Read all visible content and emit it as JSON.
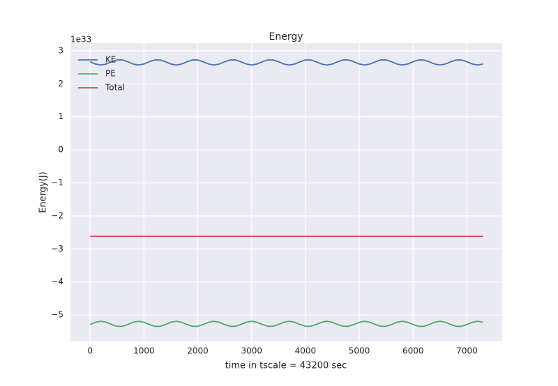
{
  "chart_data": {
    "type": "line",
    "title": "Energy",
    "xlabel": "time in tscale = 43200 sec",
    "ylabel": "Energy(J)",
    "y_offset_text": "1e33",
    "x": [
      0,
      100,
      200,
      300,
      400,
      500,
      600,
      700,
      800,
      900,
      1000,
      1100,
      1200,
      1300,
      1400,
      1500,
      1600,
      1700,
      1800,
      1900,
      2000,
      2100,
      2200,
      2300,
      2400,
      2500,
      2600,
      2700,
      2800,
      2900,
      3000,
      3100,
      3200,
      3300,
      3400,
      3500,
      3600,
      3700,
      3800,
      3900,
      4000,
      4100,
      4200,
      4300,
      4400,
      4500,
      4600,
      4700,
      4800,
      4900,
      5000,
      5100,
      5200,
      5300,
      5400,
      5500,
      5600,
      5700,
      5800,
      5900,
      6000,
      6100,
      6200,
      6300,
      6400,
      6500,
      6600,
      6700,
      6800,
      6900,
      7000,
      7100,
      7200,
      7300
    ],
    "series": [
      {
        "name": "KE",
        "color": "#4c72b0",
        "values": [
          2.668,
          2.6,
          2.57,
          2.6,
          2.668,
          2.722,
          2.722,
          2.668,
          2.6,
          2.57,
          2.6,
          2.668,
          2.722,
          2.722,
          2.668,
          2.6,
          2.57,
          2.6,
          2.668,
          2.722,
          2.722,
          2.668,
          2.6,
          2.57,
          2.6,
          2.668,
          2.722,
          2.722,
          2.668,
          2.6,
          2.57,
          2.6,
          2.668,
          2.722,
          2.722,
          2.668,
          2.6,
          2.57,
          2.6,
          2.668,
          2.722,
          2.722,
          2.668,
          2.6,
          2.57,
          2.6,
          2.668,
          2.722,
          2.722,
          2.668,
          2.6,
          2.57,
          2.6,
          2.668,
          2.722,
          2.722,
          2.668,
          2.6,
          2.57,
          2.6,
          2.668,
          2.722,
          2.722,
          2.668,
          2.6,
          2.57,
          2.6,
          2.668,
          2.722,
          2.722,
          2.668,
          2.6,
          2.57,
          2.6
        ]
      },
      {
        "name": "PE",
        "color": "#55a868",
        "values": [
          -5.288,
          -5.22,
          -5.19,
          -5.22,
          -5.288,
          -5.342,
          -5.342,
          -5.288,
          -5.22,
          -5.19,
          -5.22,
          -5.288,
          -5.342,
          -5.342,
          -5.288,
          -5.22,
          -5.19,
          -5.22,
          -5.288,
          -5.342,
          -5.342,
          -5.288,
          -5.22,
          -5.19,
          -5.22,
          -5.288,
          -5.342,
          -5.342,
          -5.288,
          -5.22,
          -5.19,
          -5.22,
          -5.288,
          -5.342,
          -5.342,
          -5.288,
          -5.22,
          -5.19,
          -5.22,
          -5.288,
          -5.342,
          -5.342,
          -5.288,
          -5.22,
          -5.19,
          -5.22,
          -5.288,
          -5.342,
          -5.342,
          -5.288,
          -5.22,
          -5.19,
          -5.22,
          -5.288,
          -5.342,
          -5.342,
          -5.288,
          -5.22,
          -5.19,
          -5.22,
          -5.288,
          -5.342,
          -5.342,
          -5.288,
          -5.22,
          -5.19,
          -5.22,
          -5.288,
          -5.342,
          -5.342,
          -5.288,
          -5.22,
          -5.19,
          -5.22
        ]
      },
      {
        "name": "Total",
        "color": "#c44e52",
        "values": [
          -2.62,
          -2.62,
          -2.62,
          -2.62,
          -2.62,
          -2.62,
          -2.62,
          -2.62,
          -2.62,
          -2.62,
          -2.62,
          -2.62,
          -2.62,
          -2.62,
          -2.62,
          -2.62,
          -2.62,
          -2.62,
          -2.62,
          -2.62,
          -2.62,
          -2.62,
          -2.62,
          -2.62,
          -2.62,
          -2.62,
          -2.62,
          -2.62,
          -2.62,
          -2.62,
          -2.62,
          -2.62,
          -2.62,
          -2.62,
          -2.62,
          -2.62,
          -2.62,
          -2.62,
          -2.62,
          -2.62,
          -2.62,
          -2.62,
          -2.62,
          -2.62,
          -2.62,
          -2.62,
          -2.62,
          -2.62,
          -2.62,
          -2.62,
          -2.62,
          -2.62,
          -2.62,
          -2.62,
          -2.62,
          -2.62,
          -2.62,
          -2.62,
          -2.62,
          -2.62,
          -2.62,
          -2.62,
          -2.62,
          -2.62,
          -2.62,
          -2.62,
          -2.62,
          -2.62,
          -2.62,
          -2.62,
          -2.62,
          -2.62,
          -2.62,
          -2.62
        ]
      }
    ],
    "xlim": [
      -365,
      7655
    ],
    "ylim": [
      -5.8,
      3.23
    ],
    "xticks": [
      0,
      1000,
      2000,
      3000,
      4000,
      5000,
      6000,
      7000
    ],
    "yticks": [
      {
        "value": -5,
        "label": "−5"
      },
      {
        "value": -4,
        "label": "−4"
      },
      {
        "value": -3,
        "label": "−3"
      },
      {
        "value": -2,
        "label": "−2"
      },
      {
        "value": -1,
        "label": "−1"
      },
      0,
      1,
      2,
      3
    ],
    "grid": true,
    "legend": "upper left"
  }
}
